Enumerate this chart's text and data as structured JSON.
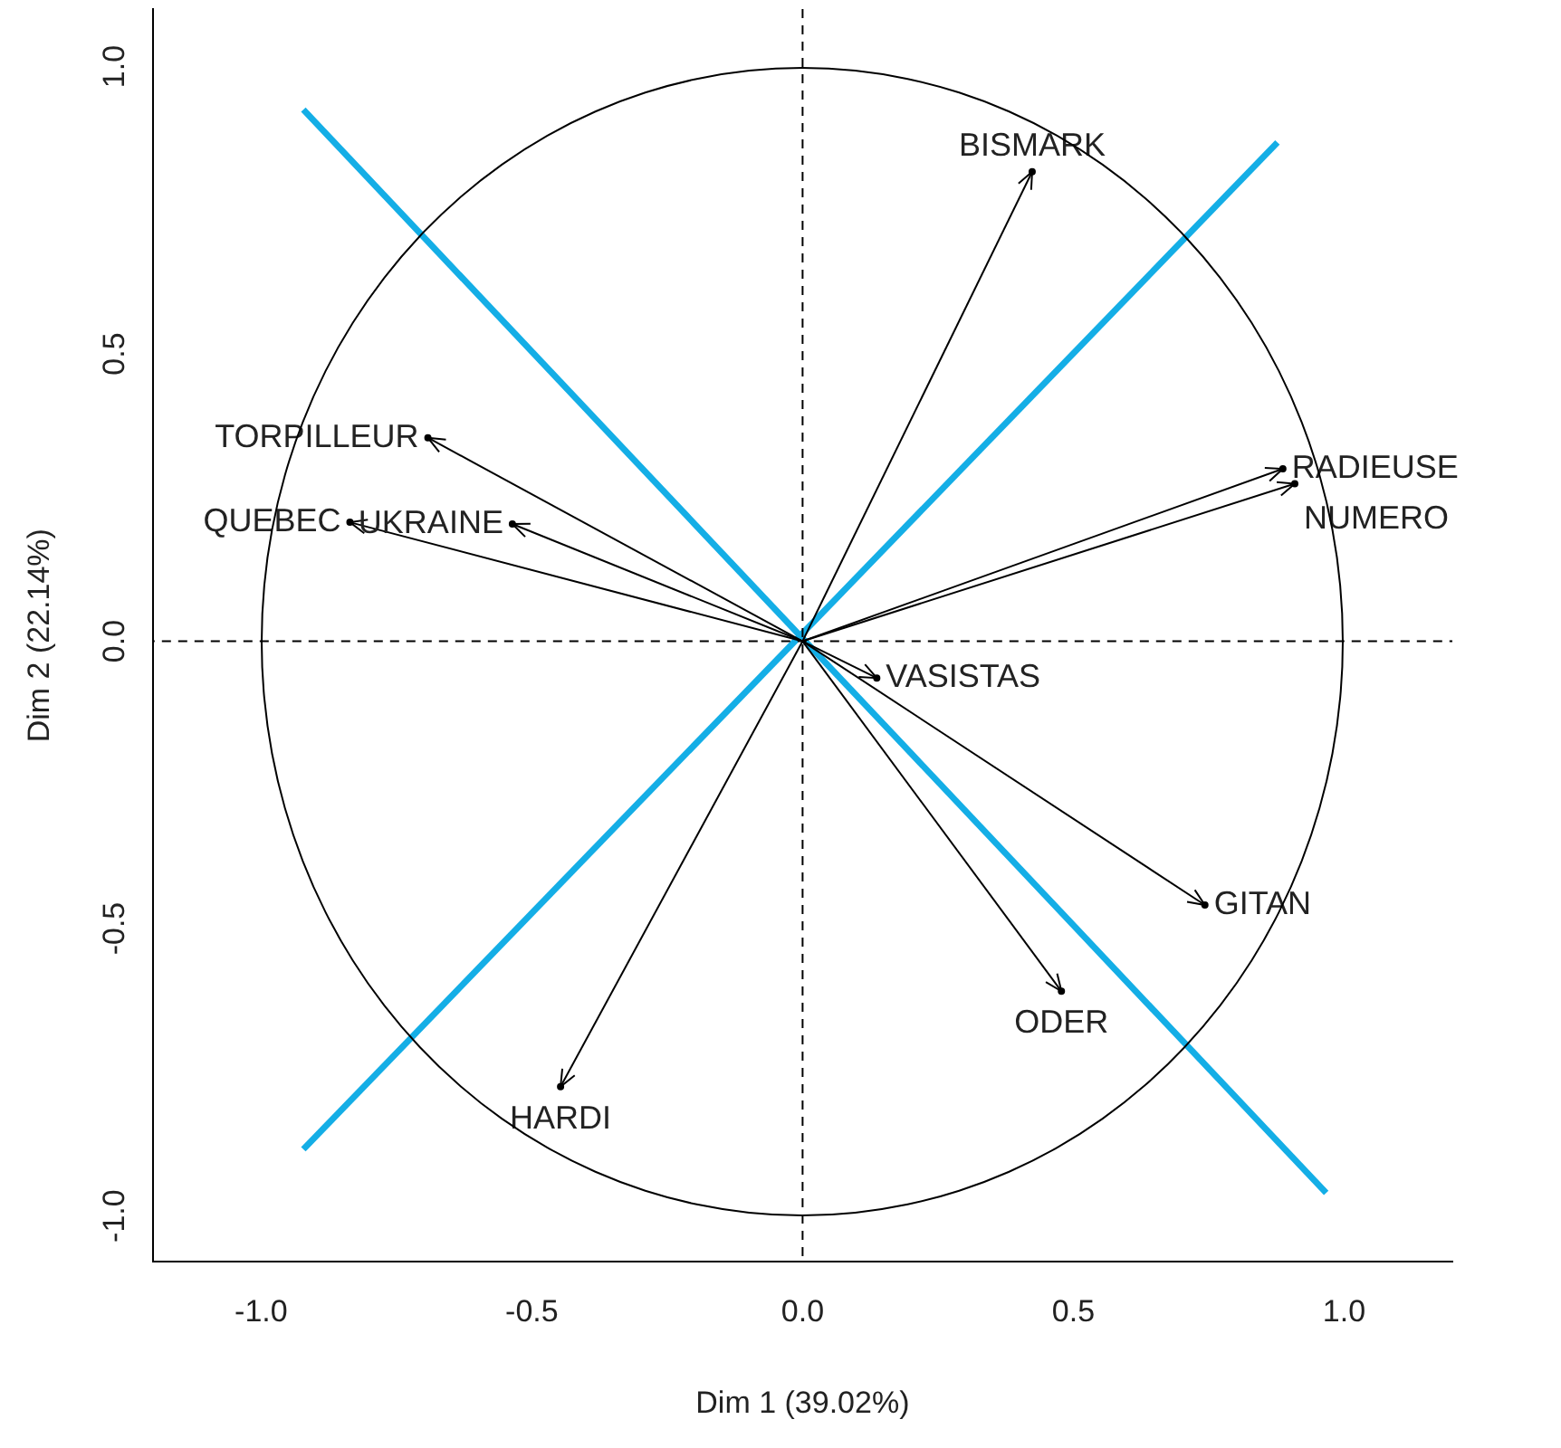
{
  "chart_data": {
    "type": "scatter",
    "xlabel": "Dim 1 (39.02%)",
    "ylabel": "Dim 2 (22.14%)",
    "xlim": [
      -1.2,
      1.2
    ],
    "ylim": [
      -1.08,
      1.1
    ],
    "xticks": [
      {
        "value": -1,
        "label": "-1.0"
      },
      {
        "value": -0.5,
        "label": "-0.5"
      },
      {
        "value": 0,
        "label": "0.0"
      },
      {
        "value": 0.5,
        "label": "0.5"
      },
      {
        "value": 1,
        "label": "1.0"
      }
    ],
    "yticks": [
      {
        "value": -1,
        "label": "-1.0"
      },
      {
        "value": -0.5,
        "label": "-0.5"
      },
      {
        "value": 0,
        "label": "0.0"
      },
      {
        "value": 0.5,
        "label": "0.5"
      },
      {
        "value": 1,
        "label": "1.0"
      }
    ],
    "grid": false,
    "legend": false,
    "series": [
      {
        "color": "#000000",
        "x": [
          0.424,
          -0.692,
          -0.836,
          -0.536,
          0.887,
          0.909,
          0.137,
          0.743,
          0.478,
          -0.447
        ],
        "values": [
          0.817,
          0.354,
          0.207,
          0.204,
          0.3,
          0.274,
          -0.064,
          -0.459,
          -0.609,
          -0.775
        ]
      },
      {
        "type": "line",
        "color": "#14aee6",
        "x": [
          -0.922,
          0.967
        ],
        "values": [
          0.925,
          -0.96
        ]
      },
      {
        "type": "line",
        "color": "#14aee6",
        "x": [
          -0.922,
          0.877
        ],
        "values": [
          -0.884,
          0.868
        ]
      }
    ],
    "ref_lines": [
      {
        "axis": "x",
        "value": 0,
        "line_style": "dashed"
      },
      {
        "axis": "y",
        "value": 0,
        "line_style": "dashed"
      }
    ],
    "annotations": [
      {
        "text": "BISMARK",
        "x": 0.424,
        "y": 0.817
      },
      {
        "text": "TORPILLEUR",
        "x": -0.692,
        "y": 0.354
      },
      {
        "text": "QUEBEC",
        "x": -0.836,
        "y": 0.207
      },
      {
        "text": "UKRAINE",
        "x": -0.536,
        "y": 0.204
      },
      {
        "text": "RADIEUSE",
        "x": 0.887,
        "y": 0.3
      },
      {
        "text": "NUMERO",
        "x": 0.909,
        "y": 0.274
      },
      {
        "text": "VASISTAS",
        "x": 0.137,
        "y": -0.064
      },
      {
        "text": "GITAN",
        "x": 0.743,
        "y": -0.459
      },
      {
        "text": "ODER",
        "x": 0.478,
        "y": -0.609
      },
      {
        "text": "HARDI",
        "x": -0.447,
        "y": -0.775
      }
    ]
  }
}
